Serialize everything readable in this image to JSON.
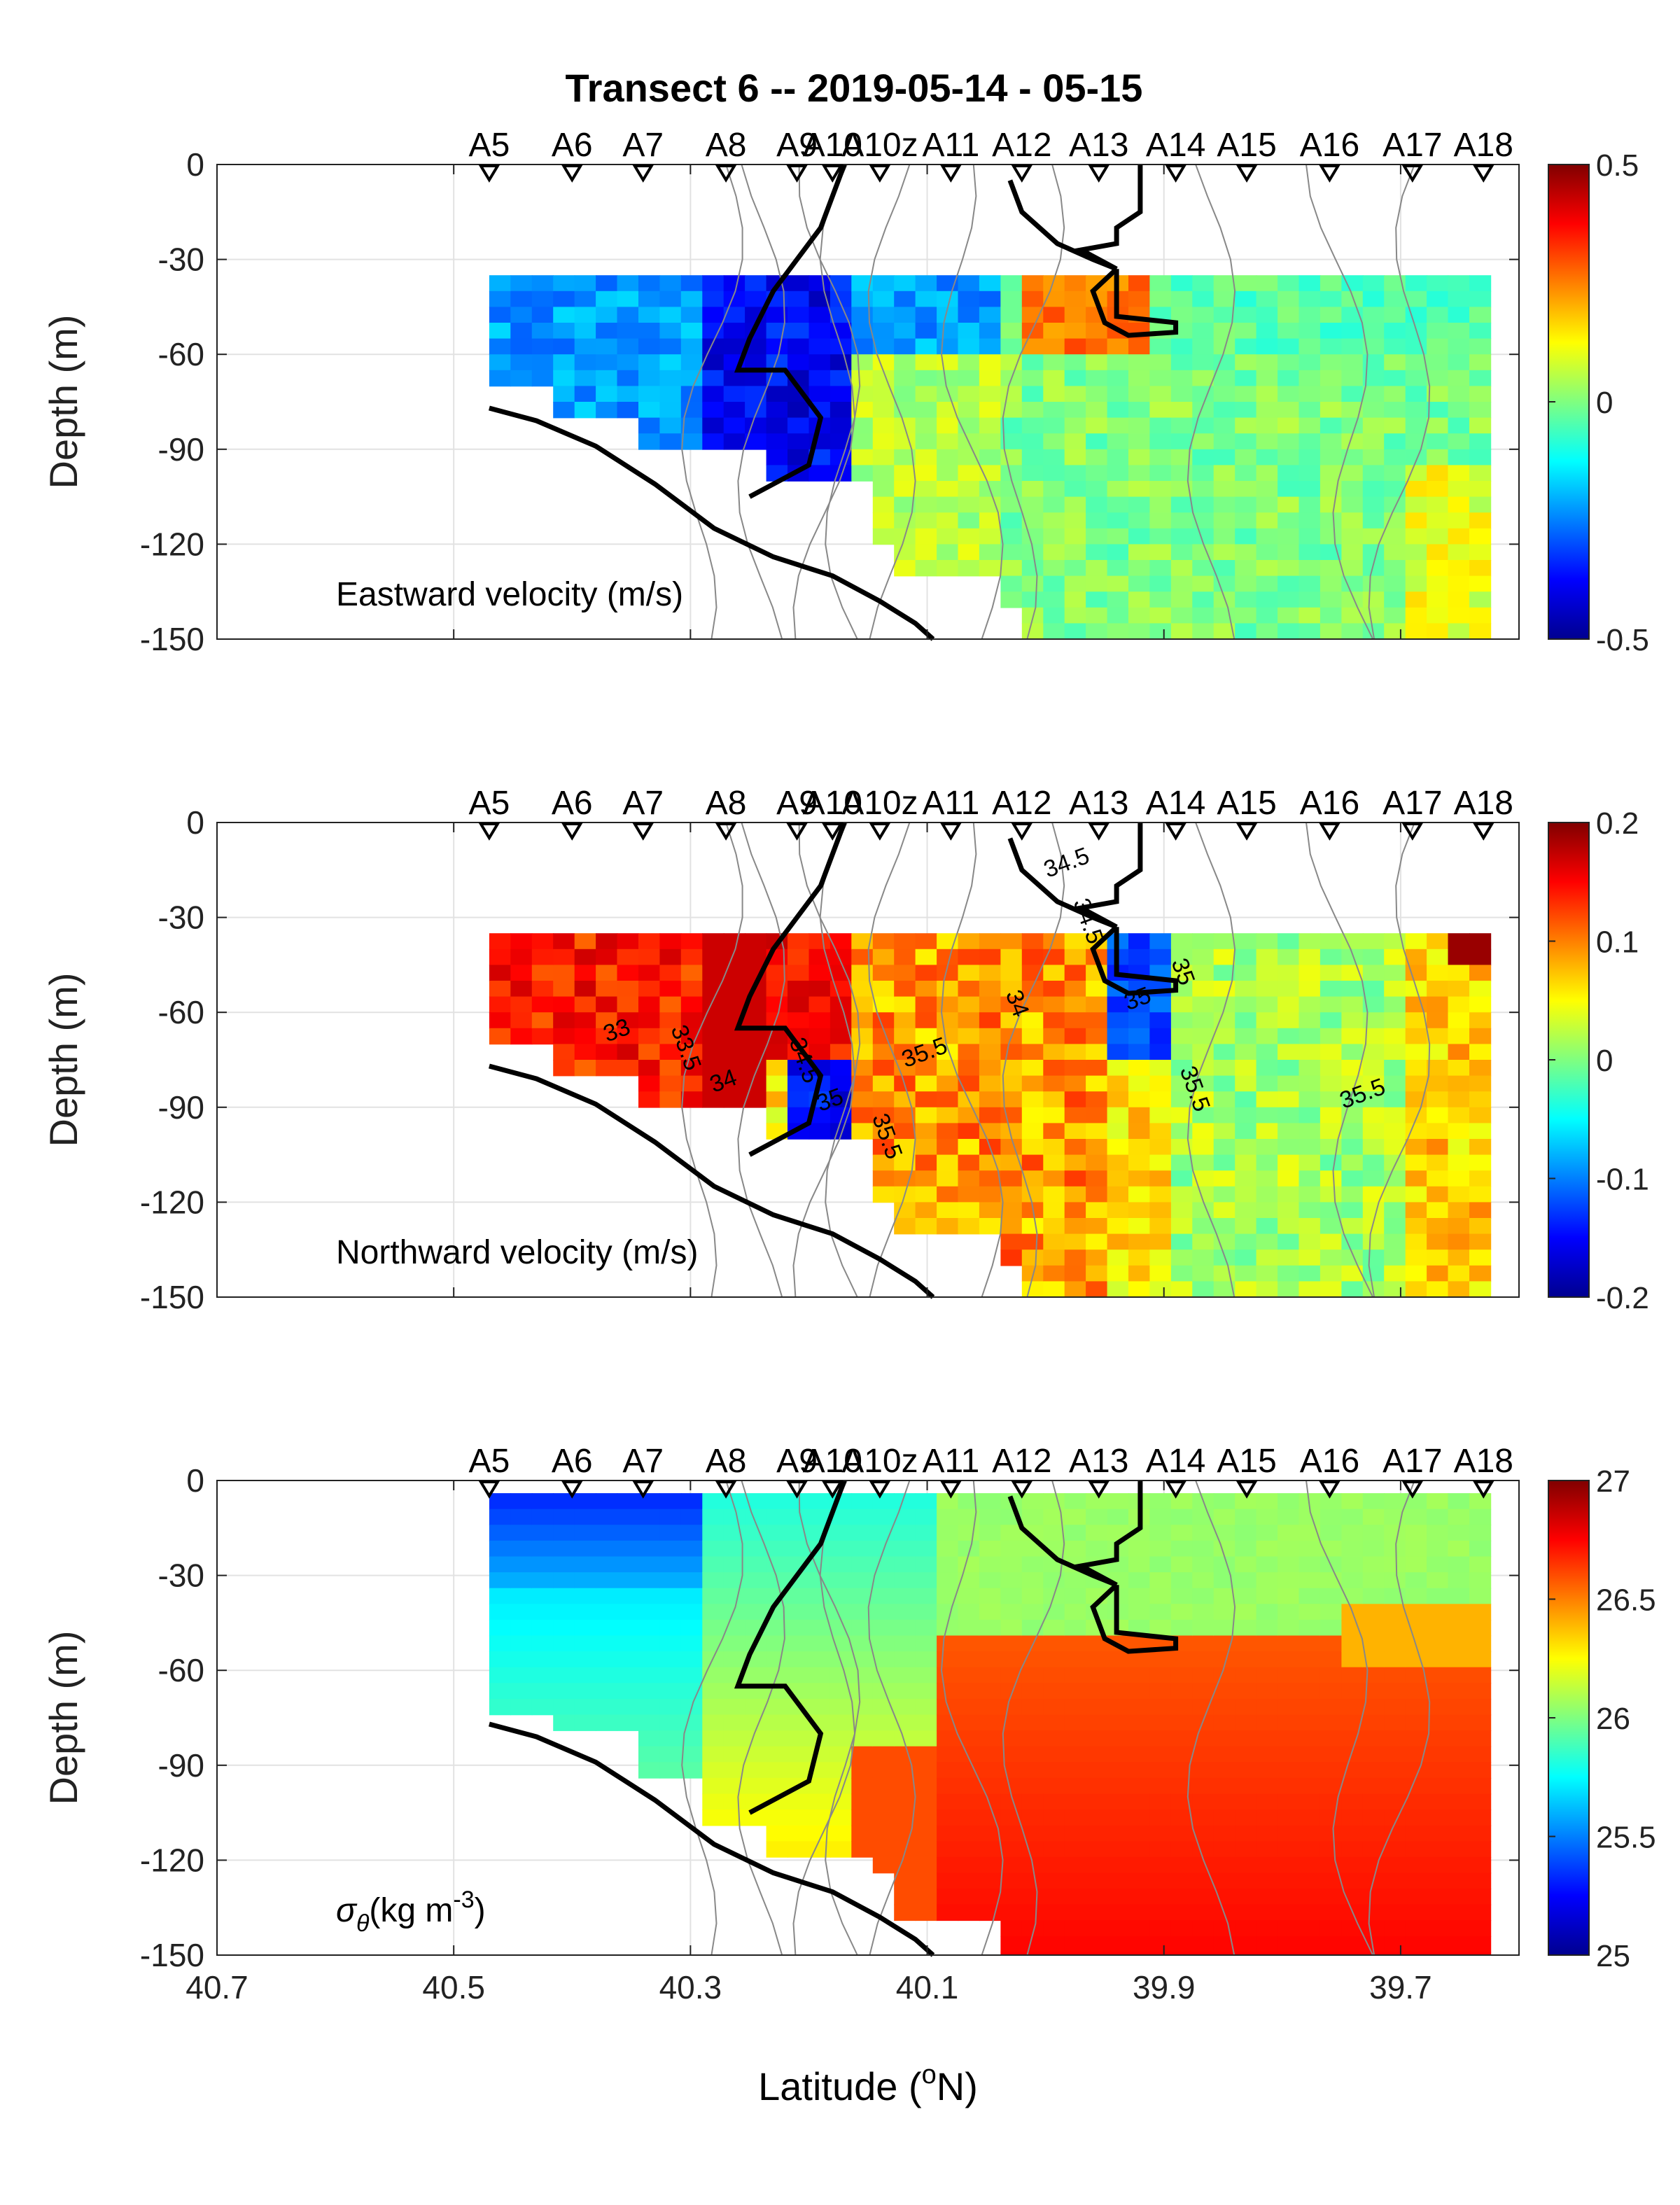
{
  "title": "Transect 6 -- 2019-05-14 - 05-15",
  "xlabel_main": "Latitude (",
  "xlabel_sup": "o",
  "xlabel_end": "N)",
  "stations": [
    "A5",
    "A6",
    "A7",
    "A8",
    "A9",
    "A10",
    "A10z",
    "A11",
    "A12",
    "A13",
    "A14",
    "A15",
    "A16",
    "A17",
    "A18"
  ],
  "chart_data": [
    {
      "type": "heatmap",
      "panel": "eastward",
      "label": "Eastward velocity (m/s)",
      "ylabel": "Depth (m)",
      "xlim": [
        40.7,
        39.6
      ],
      "ylim": [
        -150,
        0
      ],
      "x_ticks": [
        "40.7",
        "40.5",
        "40.3",
        "40.1",
        "39.9",
        "39.7"
      ],
      "y_ticks": [
        "0",
        "-30",
        "-60",
        "-90",
        "-120",
        "-150"
      ],
      "colorbar": {
        "range": [
          -0.5,
          0.5
        ],
        "ticks": [
          "0.5",
          "0",
          "-0.5"
        ]
      },
      "data_bins": [
        {
          "lat_range": [
            40.47,
            40.3
          ],
          "depth_range": [
            -35,
            -60
          ],
          "value": -0.25
        },
        {
          "lat_range": [
            40.3,
            40.17
          ],
          "depth_range": [
            -35,
            -100
          ],
          "value": -0.35
        },
        {
          "lat_range": [
            40.17,
            40.02
          ],
          "depth_range": [
            -35,
            -60
          ],
          "value": -0.2
        },
        {
          "lat_range": [
            40.02,
            39.9
          ],
          "depth_range": [
            -35,
            -60
          ],
          "value": 0.25
        },
        {
          "lat_range": [
            40.0,
            39.63
          ],
          "depth_range": [
            -60,
            -150
          ],
          "value": 0.05
        }
      ]
    },
    {
      "type": "heatmap",
      "panel": "northward",
      "label": "Northward velocity (m/s)",
      "ylabel": "Depth (m)",
      "xlim": [
        40.7,
        39.6
      ],
      "ylim": [
        -150,
        0
      ],
      "x_ticks": [
        "40.7",
        "40.5",
        "40.3",
        "40.1",
        "39.9",
        "39.7"
      ],
      "y_ticks": [
        "0",
        "-30",
        "-60",
        "-90",
        "-120",
        "-150"
      ],
      "colorbar": {
        "range": [
          -0.2,
          0.2
        ],
        "ticks": [
          "0.2",
          "0.1",
          "0",
          "-0.1",
          "-0.2"
        ]
      },
      "contour_labels": [
        "33",
        "33.5",
        "34",
        "34.5",
        "35",
        "35.5",
        "35.5",
        "35.5",
        "35.5",
        "34",
        "34.5",
        "34.5",
        "35",
        "35"
      ],
      "data_bins": [
        {
          "lat_range": [
            40.47,
            40.25
          ],
          "depth_range": [
            -35,
            -80
          ],
          "value": 0.15
        },
        {
          "lat_range": [
            40.22,
            40.17
          ],
          "depth_range": [
            -70,
            -100
          ],
          "value": -0.15
        },
        {
          "lat_range": [
            39.95,
            39.9
          ],
          "depth_range": [
            -35,
            -75
          ],
          "value": -0.12
        },
        {
          "lat_range": [
            40.1,
            39.9
          ],
          "depth_range": [
            -60,
            -150
          ],
          "value": 0.1
        },
        {
          "lat_range": [
            39.9,
            39.63
          ],
          "depth_range": [
            -60,
            -150
          ],
          "value": 0.02
        }
      ]
    },
    {
      "type": "heatmap",
      "panel": "density",
      "label_symbol": "σ",
      "label_sub": "θ",
      "label_text": "(kg m",
      "label_sup": "-3",
      "label_end": ")",
      "ylabel": "Depth (m)",
      "xlim": [
        40.7,
        39.6
      ],
      "ylim": [
        -150,
        0
      ],
      "x_ticks": [
        "40.7",
        "40.5",
        "40.3",
        "40.1",
        "39.9",
        "39.7"
      ],
      "y_ticks": [
        "0",
        "-30",
        "-60",
        "-90",
        "-120",
        "-150"
      ],
      "colorbar": {
        "range": [
          25,
          27
        ],
        "ticks": [
          "27",
          "26.5",
          "26",
          "25.5",
          "25"
        ]
      },
      "data_bins": [
        {
          "lat_range": [
            40.47,
            40.3
          ],
          "depth_range": [
            -5,
            -30
          ],
          "value": 25.35
        },
        {
          "lat_range": [
            40.47,
            40.3
          ],
          "depth_range": [
            -30,
            -70
          ],
          "value": 25.75
        },
        {
          "lat_range": [
            40.3,
            40.1
          ],
          "depth_range": [
            -5,
            -100
          ],
          "value": 26.05
        },
        {
          "lat_range": [
            40.0,
            39.63
          ],
          "depth_range": [
            -5,
            -45
          ],
          "value": 26.1
        },
        {
          "lat_range": [
            40.05,
            39.63
          ],
          "depth_range": [
            -60,
            -150
          ],
          "value": 26.65
        }
      ]
    }
  ]
}
